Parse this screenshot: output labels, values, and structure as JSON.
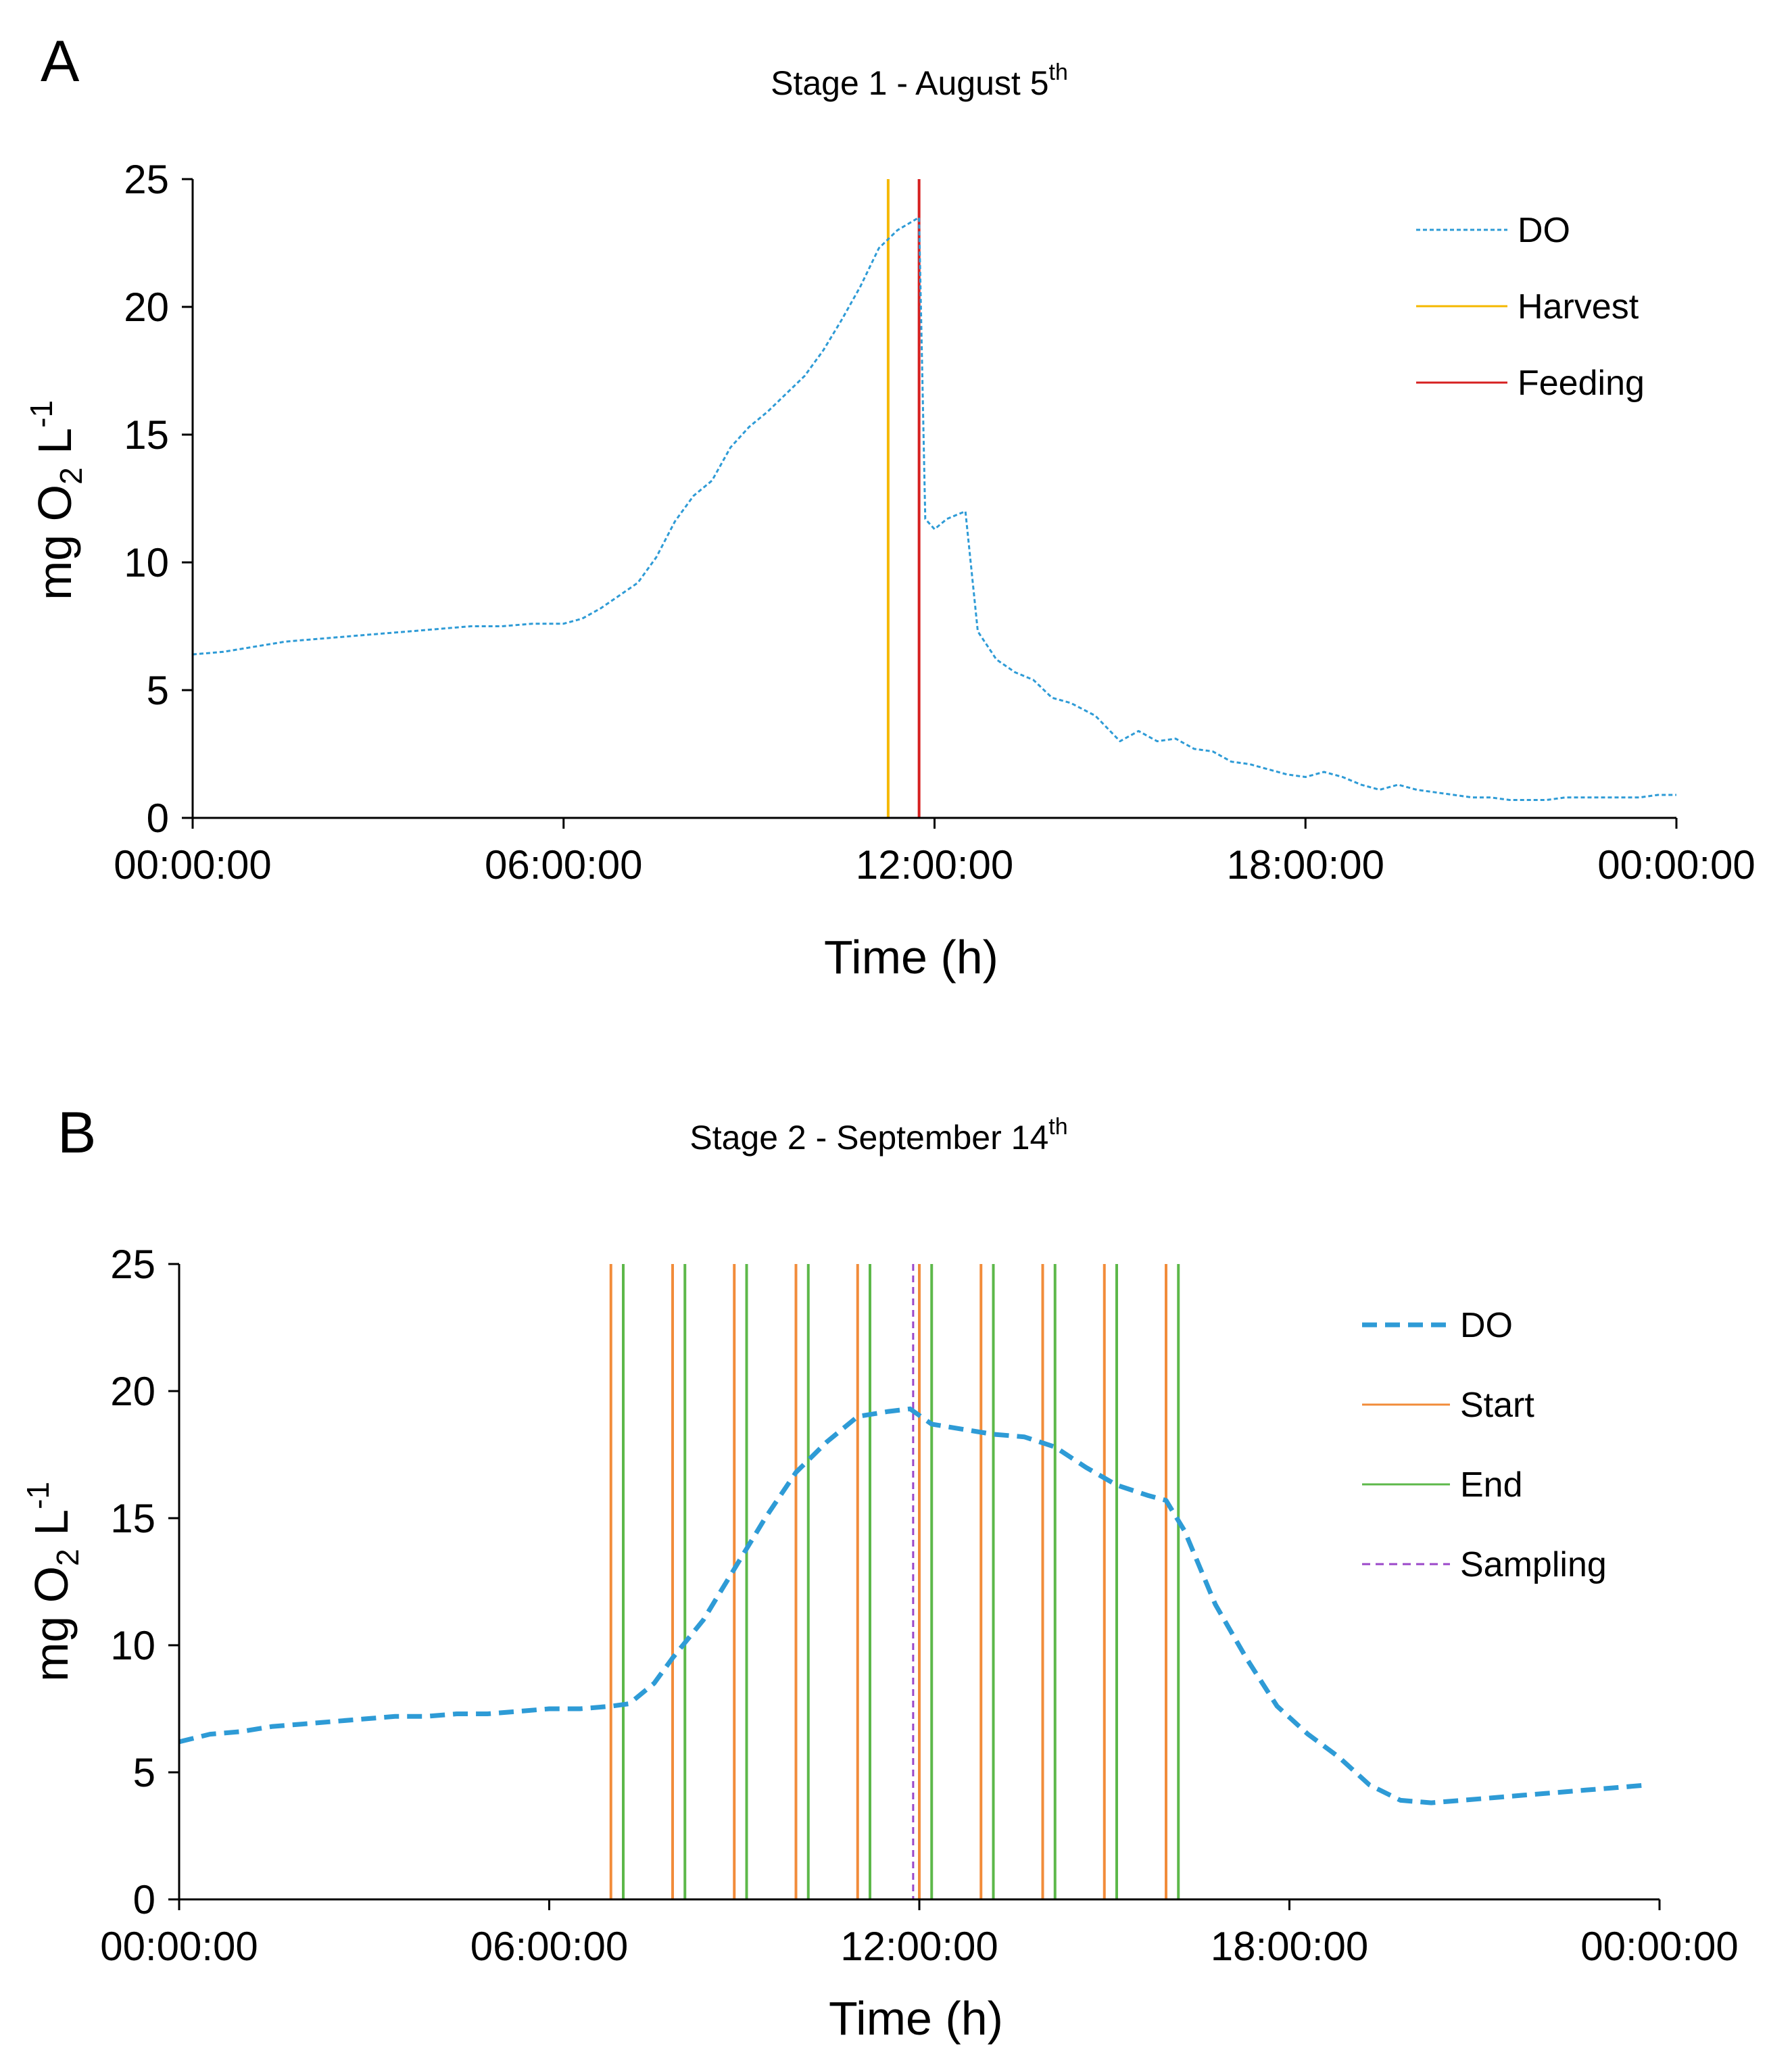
{
  "chart_data": [
    {
      "panel_label": "A",
      "type": "line",
      "title": "Stage 1 - August 5",
      "title_sup": "th",
      "xlabel": "Time  (h)",
      "ylabel": "mg O",
      "ylabel_sub": "2",
      "ylabel_tail": " L",
      "ylabel_sup": "-1",
      "xlim": [
        0,
        24
      ],
      "ylim": [
        0,
        25
      ],
      "x_ticks": [
        0,
        6,
        12,
        18,
        24
      ],
      "x_tick_labels": [
        "00:00:00",
        "06:00:00",
        "12:00:00",
        "18:00:00",
        "00:00:00"
      ],
      "y_ticks": [
        0,
        5,
        10,
        15,
        20,
        25
      ],
      "y_tick_labels": [
        "0",
        "5",
        "10",
        "15",
        "20",
        "25"
      ],
      "legend_position": "top-right",
      "legend": [
        {
          "label": "DO",
          "color": "#2E9BD6",
          "style": "dotted"
        },
        {
          "label": "Harvest",
          "color": "#F5B800",
          "style": "solid"
        },
        {
          "label": "Feeding",
          "color": "#D62020",
          "style": "solid"
        }
      ],
      "series": [
        {
          "name": "DO",
          "color": "#2E9BD6",
          "style": "dotted",
          "x": [
            0,
            0.5,
            1,
            1.5,
            2,
            2.5,
            3,
            3.5,
            4,
            4.5,
            5,
            5.5,
            6,
            6.3,
            6.6,
            6.9,
            7.2,
            7.5,
            7.8,
            8.1,
            8.4,
            8.7,
            9,
            9.3,
            9.6,
            9.9,
            10.2,
            10.5,
            10.8,
            11.1,
            11.4,
            11.75,
            11.85,
            12.0,
            12.2,
            12.5,
            12.7,
            13.0,
            13.3,
            13.6,
            13.9,
            14.2,
            14.6,
            15.0,
            15.3,
            15.6,
            15.9,
            16.2,
            16.5,
            16.8,
            17.1,
            17.4,
            17.7,
            18.0,
            18.3,
            18.6,
            18.9,
            19.2,
            19.5,
            19.8,
            20.1,
            20.4,
            20.7,
            21.0,
            21.3,
            21.6,
            21.9,
            22.2,
            22.5,
            22.8,
            23.1,
            23.4,
            23.7,
            24.0
          ],
          "y": [
            6.4,
            6.5,
            6.7,
            6.9,
            7.0,
            7.1,
            7.2,
            7.3,
            7.4,
            7.5,
            7.5,
            7.6,
            7.6,
            7.8,
            8.2,
            8.7,
            9.2,
            10.2,
            11.6,
            12.6,
            13.2,
            14.5,
            15.3,
            15.9,
            16.6,
            17.3,
            18.3,
            19.5,
            20.8,
            22.3,
            23.0,
            23.5,
            11.7,
            11.3,
            11.7,
            12.0,
            7.3,
            6.2,
            5.7,
            5.4,
            4.7,
            4.5,
            4.0,
            3.0,
            3.4,
            3.0,
            3.1,
            2.7,
            2.6,
            2.2,
            2.1,
            1.9,
            1.7,
            1.6,
            1.8,
            1.6,
            1.3,
            1.1,
            1.3,
            1.1,
            1.0,
            0.9,
            0.8,
            0.8,
            0.7,
            0.7,
            0.7,
            0.8,
            0.8,
            0.8,
            0.8,
            0.8,
            0.9,
            0.9
          ]
        }
      ],
      "vlines": [
        {
          "name": "Harvest",
          "x": 11.25,
          "color": "#F5B800",
          "style": "solid"
        },
        {
          "name": "Feeding",
          "x": 11.75,
          "color": "#D62020",
          "style": "solid"
        }
      ]
    },
    {
      "panel_label": "B",
      "type": "line",
      "title": "Stage 2 - September 14",
      "title_sup": "th",
      "xlabel": "Time   (h)",
      "ylabel": "mg O",
      "ylabel_sub": "2",
      "ylabel_tail": " L",
      "ylabel_sup": "-1",
      "xlim": [
        0,
        24
      ],
      "ylim": [
        0,
        25
      ],
      "x_ticks": [
        0,
        6,
        12,
        18,
        24
      ],
      "x_tick_labels": [
        "00:00:00",
        "06:00:00",
        "12:00:00",
        "18:00:00",
        "00:00:00"
      ],
      "y_ticks": [
        0,
        5,
        10,
        15,
        20,
        25
      ],
      "y_tick_labels": [
        "0",
        "5",
        "10",
        "15",
        "20",
        "25"
      ],
      "legend_position": "top-right",
      "legend": [
        {
          "label": "DO",
          "color": "#2E9BD6",
          "style": "dashed"
        },
        {
          "label": "Start",
          "color": "#F28C3A",
          "style": "solid"
        },
        {
          "label": "End",
          "color": "#5DB84A",
          "style": "solid"
        },
        {
          "label": "Sampling",
          "color": "#9B47C9",
          "style": "dashed"
        }
      ],
      "series": [
        {
          "name": "DO",
          "color": "#2E9BD6",
          "style": "dashed",
          "x": [
            0,
            0.5,
            1,
            1.5,
            2,
            2.5,
            3,
            3.5,
            4,
            4.5,
            5,
            5.5,
            6,
            6.5,
            7,
            7.3,
            7.7,
            8.0,
            8.5,
            9.0,
            9.5,
            10.0,
            10.5,
            11.0,
            11.5,
            11.85,
            12.2,
            12.7,
            13.2,
            13.7,
            14.2,
            14.7,
            15.2,
            15.7,
            16.0,
            16.3,
            16.8,
            17.3,
            17.8,
            18.3,
            18.8,
            19.3,
            19.8,
            20.3,
            20.8,
            21.3,
            21.8,
            22.3,
            22.8,
            23.3,
            23.8
          ],
          "y": [
            6.2,
            6.5,
            6.6,
            6.8,
            6.9,
            7.0,
            7.1,
            7.2,
            7.2,
            7.3,
            7.3,
            7.4,
            7.5,
            7.5,
            7.6,
            7.7,
            8.5,
            9.5,
            11.0,
            13.0,
            15.0,
            16.8,
            18.0,
            19.0,
            19.2,
            19.3,
            18.7,
            18.5,
            18.3,
            18.2,
            17.8,
            17.0,
            16.3,
            15.9,
            15.7,
            14.5,
            11.6,
            9.5,
            7.6,
            6.5,
            5.6,
            4.5,
            3.9,
            3.8,
            3.9,
            4.0,
            4.1,
            4.2,
            4.3,
            4.4,
            4.5
          ]
        }
      ],
      "vlines": [
        {
          "name": "Start",
          "x": 7.0,
          "color": "#F28C3A",
          "style": "solid"
        },
        {
          "name": "End",
          "x": 7.2,
          "color": "#5DB84A",
          "style": "solid"
        },
        {
          "name": "Start",
          "x": 8.0,
          "color": "#F28C3A",
          "style": "solid"
        },
        {
          "name": "End",
          "x": 8.2,
          "color": "#5DB84A",
          "style": "solid"
        },
        {
          "name": "Start",
          "x": 9.0,
          "color": "#F28C3A",
          "style": "solid"
        },
        {
          "name": "End",
          "x": 9.2,
          "color": "#5DB84A",
          "style": "solid"
        },
        {
          "name": "Start",
          "x": 10.0,
          "color": "#F28C3A",
          "style": "solid"
        },
        {
          "name": "End",
          "x": 10.2,
          "color": "#5DB84A",
          "style": "solid"
        },
        {
          "name": "Start",
          "x": 11.0,
          "color": "#F28C3A",
          "style": "solid"
        },
        {
          "name": "End",
          "x": 11.2,
          "color": "#5DB84A",
          "style": "solid"
        },
        {
          "name": "Start",
          "x": 12.0,
          "color": "#F28C3A",
          "style": "solid"
        },
        {
          "name": "End",
          "x": 12.2,
          "color": "#5DB84A",
          "style": "solid"
        },
        {
          "name": "Start",
          "x": 13.0,
          "color": "#F28C3A",
          "style": "solid"
        },
        {
          "name": "End",
          "x": 13.2,
          "color": "#5DB84A",
          "style": "solid"
        },
        {
          "name": "Start",
          "x": 14.0,
          "color": "#F28C3A",
          "style": "solid"
        },
        {
          "name": "End",
          "x": 14.2,
          "color": "#5DB84A",
          "style": "solid"
        },
        {
          "name": "Start",
          "x": 15.0,
          "color": "#F28C3A",
          "style": "solid"
        },
        {
          "name": "End",
          "x": 15.2,
          "color": "#5DB84A",
          "style": "solid"
        },
        {
          "name": "Start",
          "x": 16.0,
          "color": "#F28C3A",
          "style": "solid"
        },
        {
          "name": "End",
          "x": 16.2,
          "color": "#5DB84A",
          "style": "solid"
        },
        {
          "name": "Sampling",
          "x": 11.9,
          "color": "#9B47C9",
          "style": "dashed"
        }
      ]
    }
  ]
}
